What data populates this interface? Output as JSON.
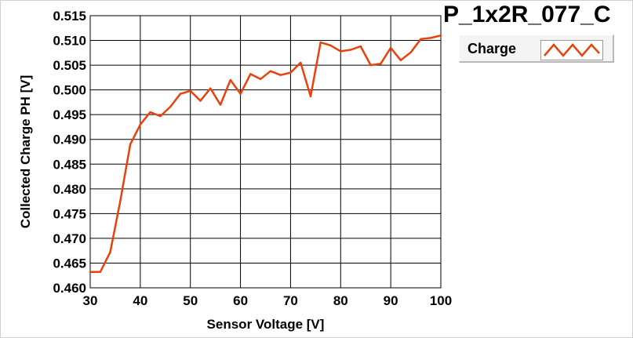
{
  "chart_data": {
    "type": "line",
    "title": "P_1x2R_077_C",
    "xlabel": "Sensor Voltage [V]",
    "ylabel": "Collected Charge PH [V]",
    "xlim": [
      30,
      100
    ],
    "ylim": [
      0.46,
      0.515
    ],
    "xticks": [
      30,
      40,
      50,
      60,
      70,
      80,
      90,
      100
    ],
    "yticks": [
      "0.460",
      "0.465",
      "0.470",
      "0.475",
      "0.480",
      "0.485",
      "0.490",
      "0.495",
      "0.500",
      "0.505",
      "0.510",
      "0.515"
    ],
    "grid": true,
    "legend_position": "top-right",
    "series": [
      {
        "name": "Charge",
        "color": "#e8410b",
        "x": [
          30,
          32,
          34,
          36,
          38,
          40,
          42,
          44,
          46,
          48,
          50,
          52,
          54,
          56,
          58,
          60,
          62,
          64,
          66,
          68,
          70,
          72,
          74,
          76,
          78,
          80,
          82,
          84,
          86,
          88,
          90,
          92,
          94,
          96,
          98,
          100
        ],
        "y": [
          0.4632,
          0.4632,
          0.4672,
          0.4775,
          0.489,
          0.493,
          0.4955,
          0.4947,
          0.4966,
          0.4992,
          0.4998,
          0.4978,
          0.5003,
          0.497,
          0.502,
          0.4992,
          0.5032,
          0.5022,
          0.5038,
          0.503,
          0.5035,
          0.5055,
          0.4987,
          0.5096,
          0.509,
          0.5078,
          0.5081,
          0.5088,
          0.505,
          0.5053,
          0.5085,
          0.506,
          0.5076,
          0.5103,
          0.5105,
          0.511
        ]
      }
    ]
  }
}
